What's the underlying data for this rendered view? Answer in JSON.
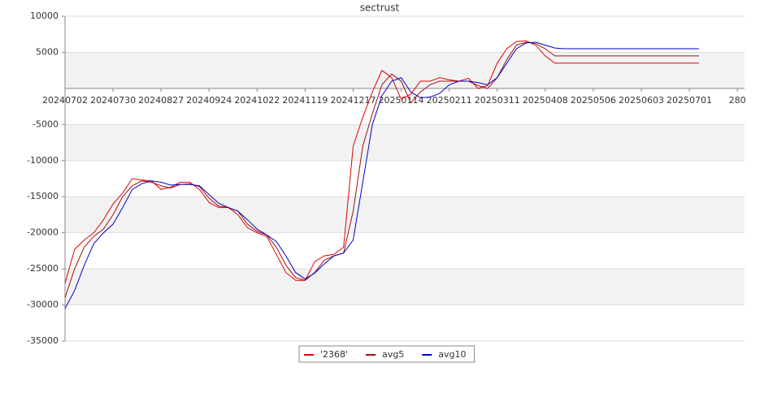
{
  "chart_data": {
    "type": "line",
    "title": "sectrust",
    "x": [
      0,
      4,
      8,
      12,
      16,
      20,
      24,
      28,
      32,
      36,
      40,
      44,
      48,
      52,
      56,
      60,
      64,
      68,
      72,
      76,
      80,
      84,
      88,
      92,
      96,
      100,
      104,
      108,
      112,
      116,
      120,
      124,
      128,
      132,
      136,
      140,
      144,
      148,
      152,
      156,
      160,
      164,
      168,
      172,
      176,
      180,
      184,
      188,
      192,
      196,
      200,
      204,
      208,
      212,
      216,
      220,
      224,
      228,
      232,
      236,
      240,
      244,
      248,
      252,
      256,
      260,
      264
    ],
    "series": [
      {
        "name": "'2368'",
        "color": "#e00000",
        "values": [
          -27000,
          -22300,
          -21000,
          -20000,
          -18200,
          -16000,
          -14500,
          -12500,
          -12700,
          -12800,
          -14000,
          -13700,
          -13000,
          -13000,
          -14000,
          -15800,
          -16500,
          -16500,
          -17500,
          -19300,
          -20000,
          -20500,
          -23000,
          -25500,
          -26600,
          -26600,
          -24000,
          -23200,
          -23000,
          -22000,
          -8000,
          -4000,
          -500,
          2500,
          1500,
          -1500,
          -800,
          1000,
          1000,
          1500,
          1200,
          1000,
          1400,
          0,
          400,
          3500,
          5500,
          6500,
          6600,
          6000,
          4500,
          3500,
          3500,
          3500,
          3500,
          3500,
          3500,
          3500,
          3500,
          3500,
          3500,
          3500,
          3500,
          3500,
          3500,
          3500,
          3500
        ]
      },
      {
        "name": "avg5",
        "color": "#a01010",
        "values": [
          -29000,
          -25000,
          -22000,
          -20500,
          -19500,
          -17500,
          -15000,
          -13500,
          -12800,
          -13000,
          -13500,
          -13800,
          -13300,
          -13200,
          -13600,
          -15200,
          -16300,
          -16500,
          -17000,
          -18800,
          -19800,
          -20300,
          -22000,
          -24500,
          -26200,
          -26600,
          -25500,
          -23800,
          -23200,
          -22800,
          -17000,
          -8000,
          -3500,
          500,
          2000,
          1000,
          -2000,
          -500,
          500,
          1000,
          1000,
          1000,
          1000,
          400,
          0,
          1500,
          4000,
          6000,
          6400,
          6200,
          5500,
          4500,
          4500,
          4500,
          4500,
          4500,
          4500,
          4500,
          4500,
          4500,
          4500,
          4500,
          4500,
          4500,
          4500,
          4500,
          4500
        ]
      },
      {
        "name": "avg10",
        "color": "#0000cc",
        "values": [
          -30500,
          -28000,
          -24500,
          -21500,
          -20000,
          -18800,
          -16500,
          -14000,
          -13200,
          -12800,
          -13000,
          -13400,
          -13300,
          -13300,
          -13500,
          -14700,
          -15900,
          -16500,
          -17000,
          -18200,
          -19500,
          -20300,
          -21200,
          -23200,
          -25500,
          -26400,
          -25600,
          -24300,
          -23200,
          -22800,
          -21000,
          -13000,
          -5000,
          -1000,
          1000,
          1500,
          -500,
          -1300,
          -1200,
          -700,
          500,
          1000,
          1000,
          800,
          500,
          1500,
          3500,
          5500,
          6300,
          6400,
          6000,
          5600,
          5500,
          5500,
          5500,
          5500,
          5500,
          5500,
          5500,
          5500,
          5500,
          5500,
          5500,
          5500,
          5500,
          5500,
          5500
        ]
      }
    ],
    "xlim": [
      0,
      283
    ],
    "xticks": [
      {
        "value": 0,
        "label": "20240702"
      },
      {
        "value": 20,
        "label": "20240730"
      },
      {
        "value": 40,
        "label": "20240827"
      },
      {
        "value": 60,
        "label": "20240924"
      },
      {
        "value": 80,
        "label": "20241022"
      },
      {
        "value": 100,
        "label": "20241119"
      },
      {
        "value": 120,
        "label": "20241217"
      },
      {
        "value": 140,
        "label": "20250114"
      },
      {
        "value": 160,
        "label": "20250211"
      },
      {
        "value": 180,
        "label": "20250311"
      },
      {
        "value": 200,
        "label": "20250408"
      },
      {
        "value": 220,
        "label": "20250506"
      },
      {
        "value": 240,
        "label": "20250603"
      },
      {
        "value": 260,
        "label": "20250701"
      },
      {
        "value": 280,
        "label": "280"
      }
    ],
    "ylim": [
      -35000,
      10000
    ],
    "yticks": [
      -35000,
      -30000,
      -25000,
      -20000,
      -15000,
      -10000,
      -5000,
      5000,
      10000
    ],
    "grid": true,
    "legend": "bottom"
  }
}
